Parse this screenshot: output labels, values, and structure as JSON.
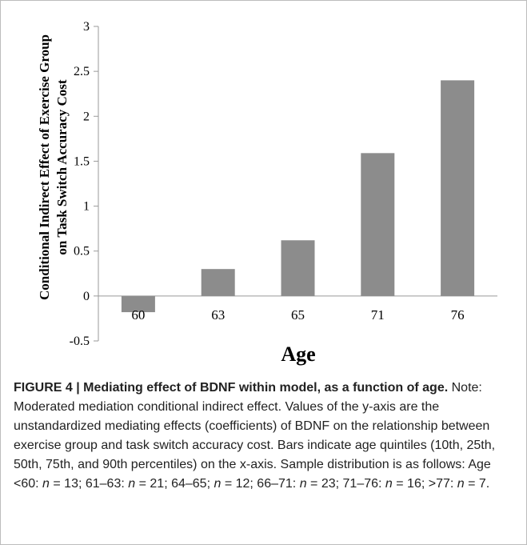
{
  "chart_data": {
    "type": "bar",
    "categories": [
      "60",
      "63",
      "65",
      "71",
      "76"
    ],
    "values": [
      -0.18,
      0.3,
      0.62,
      1.59,
      2.4
    ],
    "title": "",
    "xlabel": "Age",
    "ylabel": "Conditional Indirect Effect of Exercise Group on Task Switch Accuracy Cost",
    "ylim": [
      -0.5,
      3
    ],
    "yticks": [
      "3",
      "2.5",
      "2",
      "1.5",
      "1",
      "0.5",
      "0",
      "-0.5"
    ],
    "grid": false,
    "legend": "none",
    "bar_color": "#8c8c8c"
  },
  "caption": {
    "lead": "FIGURE 4 | Mediating effect of BDNF within model, as a function of age.",
    "text": " Note: Moderated mediation conditional indirect effect. Values of the y-axis are the unstandardized mediating effects (coefficients) of BDNF on the relationship between exercise group and task switch accuracy cost. Bars indicate age quintiles (10th, 25th, 50th, 75th, and 90th percentiles) on the x-axis. Sample distribution is as follows: Age <60: ",
    "n_symbol": "n",
    "distribution": [
      {
        "n": " = 13; 61–63: "
      },
      {
        "n": " = 21; 64–65; "
      },
      {
        "n": " = 12; 66–71: "
      },
      {
        "n": " = 23; 71–76: "
      },
      {
        "n": " = 16; >77: "
      },
      {
        "n": " = 7."
      }
    ]
  }
}
